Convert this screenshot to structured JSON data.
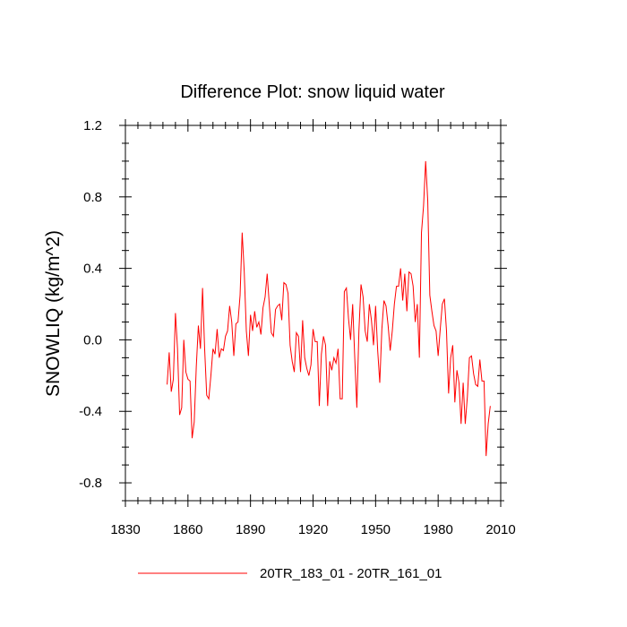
{
  "chart_data": {
    "type": "line",
    "title": "Difference Plot: snow liquid water",
    "xlabel": "",
    "ylabel": "SNOWLIQ  (kg/m^2)",
    "xlim": [
      1830,
      2010
    ],
    "ylim": [
      -0.9,
      1.2
    ],
    "xticks": [
      1830,
      1860,
      1890,
      1920,
      1950,
      1980,
      2010
    ],
    "xtick_labels": [
      "1830",
      "1860",
      "1890",
      "1920",
      "1950",
      "1980",
      "2010"
    ],
    "yticks": [
      -0.8,
      -0.4,
      0.0,
      0.4,
      0.8,
      1.2
    ],
    "ytick_labels": [
      "-0.8",
      "-0.4",
      "0.0",
      "0.4",
      "0.8",
      "1.2"
    ],
    "grid": false,
    "legend_position": "bottom-center",
    "series": [
      {
        "name": "20TR_183_01 - 20TR_161_01",
        "color": "#ff0000",
        "x": [
          1850,
          1851,
          1852,
          1853,
          1854,
          1855,
          1856,
          1857,
          1858,
          1859,
          1860,
          1861,
          1862,
          1863,
          1864,
          1865,
          1866,
          1867,
          1868,
          1869,
          1870,
          1871,
          1872,
          1873,
          1874,
          1875,
          1876,
          1877,
          1878,
          1879,
          1880,
          1881,
          1882,
          1883,
          1884,
          1885,
          1886,
          1887,
          1888,
          1889,
          1890,
          1891,
          1892,
          1893,
          1894,
          1895,
          1896,
          1897,
          1898,
          1899,
          1900,
          1901,
          1902,
          1903,
          1904,
          1905,
          1906,
          1907,
          1908,
          1909,
          1910,
          1911,
          1912,
          1913,
          1914,
          1915,
          1916,
          1917,
          1918,
          1919,
          1920,
          1921,
          1922,
          1923,
          1924,
          1925,
          1926,
          1927,
          1928,
          1929,
          1930,
          1931,
          1932,
          1933,
          1934,
          1935,
          1936,
          1937,
          1938,
          1939,
          1940,
          1941,
          1942,
          1943,
          1944,
          1945,
          1946,
          1947,
          1948,
          1949,
          1950,
          1951,
          1952,
          1953,
          1954,
          1955,
          1956,
          1957,
          1958,
          1959,
          1960,
          1961,
          1962,
          1963,
          1964,
          1965,
          1966,
          1967,
          1968,
          1969,
          1970,
          1971,
          1972,
          1973,
          1974,
          1975,
          1976,
          1977,
          1978,
          1979,
          1980,
          1981,
          1982,
          1983,
          1984,
          1985,
          1986,
          1987,
          1988,
          1989,
          1990,
          1991,
          1992,
          1993,
          1994,
          1995,
          1996,
          1997,
          1998,
          1999,
          2000,
          2001,
          2002,
          2003,
          2004,
          2005
        ],
        "values": [
          -0.25,
          -0.07,
          -0.29,
          -0.22,
          0.15,
          -0.05,
          -0.42,
          -0.38,
          0.0,
          -0.18,
          -0.22,
          -0.23,
          -0.55,
          -0.46,
          -0.15,
          0.08,
          -0.05,
          0.29,
          -0.05,
          -0.31,
          -0.33,
          -0.2,
          -0.05,
          -0.08,
          0.06,
          -0.1,
          -0.05,
          -0.06,
          0.02,
          0.05,
          0.19,
          0.1,
          -0.09,
          0.09,
          0.1,
          0.25,
          0.6,
          0.38,
          0.05,
          -0.09,
          0.14,
          0.05,
          0.16,
          0.07,
          0.1,
          0.03,
          0.18,
          0.24,
          0.37,
          0.2,
          0.04,
          0.02,
          0.17,
          0.19,
          0.2,
          0.11,
          0.32,
          0.31,
          0.26,
          -0.03,
          -0.12,
          -0.18,
          0.04,
          0.02,
          -0.18,
          0.11,
          -0.1,
          -0.16,
          -0.2,
          -0.14,
          0.06,
          -0.01,
          -0.01,
          -0.37,
          -0.08,
          0.02,
          -0.03,
          -0.37,
          -0.12,
          -0.17,
          -0.1,
          -0.13,
          -0.05,
          -0.33,
          -0.33,
          0.27,
          0.29,
          0.12,
          0.0,
          0.2,
          -0.1,
          -0.38,
          0.05,
          0.31,
          0.24,
          0.05,
          -0.01,
          0.2,
          0.11,
          -0.03,
          0.19,
          -0.06,
          -0.24,
          0.06,
          0.22,
          0.19,
          0.08,
          -0.06,
          0.05,
          0.2,
          0.3,
          0.3,
          0.4,
          0.22,
          0.37,
          0.16,
          0.38,
          0.37,
          0.3,
          0.1,
          0.2,
          -0.1,
          0.6,
          0.75,
          1.0,
          0.78,
          0.25,
          0.16,
          0.08,
          0.05,
          -0.09,
          0.06,
          0.2,
          0.23,
          0.05,
          -0.3,
          -0.1,
          -0.03,
          -0.35,
          -0.17,
          -0.24,
          -0.47,
          -0.24,
          -0.47,
          -0.32,
          -0.1,
          -0.09,
          -0.19,
          -0.25,
          -0.26,
          -0.11,
          -0.23,
          -0.23,
          -0.65,
          -0.47,
          -0.37
        ]
      }
    ]
  }
}
